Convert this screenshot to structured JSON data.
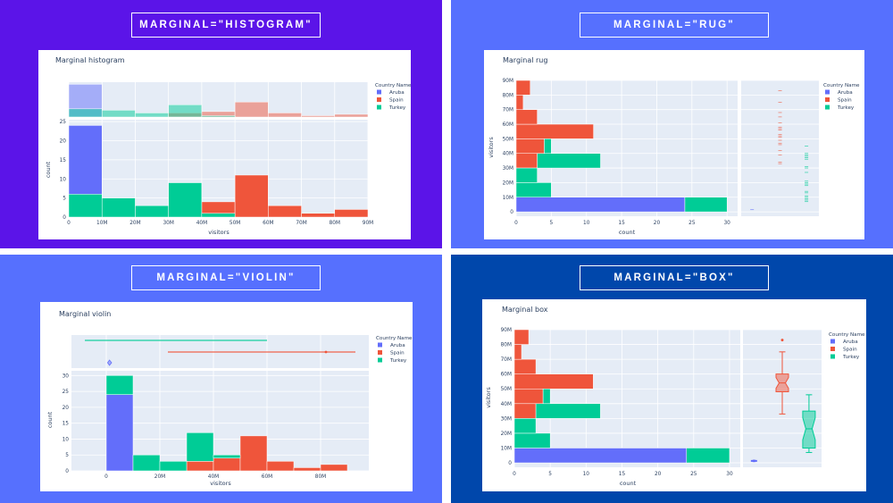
{
  "colors": {
    "Aruba": "#636efa",
    "Spain": "#ef553b",
    "Turkey": "#00cc96",
    "plot_bg": "#e5ecf6",
    "text": "#2a3f5f"
  },
  "quadrants": [
    {
      "banner": "MARGINAL=\"HISTOGRAM\"",
      "bg": "#5b14e8"
    },
    {
      "banner": "MARGINAL=\"RUG\"",
      "bg": "#5670fe"
    },
    {
      "banner": "MARGINAL=\"VIOLIN\"",
      "bg": "#5670fe"
    },
    {
      "banner": "MARGINAL=\"BOX\"",
      "bg": "#0047ab"
    }
  ],
  "chart_data": [
    {
      "type": "bar",
      "orientation": "vertical",
      "title": "Marginal histogram",
      "xlabel": "visitors",
      "ylabel": "count",
      "barmode": "overlay",
      "bins": [
        [
          0,
          10
        ],
        [
          10,
          20
        ],
        [
          20,
          30
        ],
        [
          30,
          40
        ],
        [
          40,
          50
        ],
        [
          50,
          60
        ],
        [
          60,
          70
        ],
        [
          70,
          80
        ],
        [
          80,
          90
        ]
      ],
      "series": [
        {
          "name": "Aruba",
          "values": [
            24,
            0,
            0,
            0,
            0,
            0,
            0,
            0,
            0
          ]
        },
        {
          "name": "Spain",
          "values": [
            0,
            0,
            0,
            3,
            4,
            11,
            3,
            1,
            2
          ]
        },
        {
          "name": "Turkey",
          "values": [
            6,
            5,
            3,
            9,
            1,
            0,
            0,
            0,
            0
          ]
        }
      ],
      "xlim": [
        0,
        90
      ],
      "ylim": [
        0,
        25.5
      ],
      "xticks": [
        {
          "v": 0,
          "l": "0"
        },
        {
          "v": 10,
          "l": "10M"
        },
        {
          "v": 20,
          "l": "20M"
        },
        {
          "v": 30,
          "l": "30M"
        },
        {
          "v": 40,
          "l": "40M"
        },
        {
          "v": 50,
          "l": "50M"
        },
        {
          "v": 60,
          "l": "60M"
        },
        {
          "v": 70,
          "l": "70M"
        },
        {
          "v": 80,
          "l": "80M"
        },
        {
          "v": 90,
          "l": "90M"
        }
      ],
      "yticks": [
        {
          "v": 0,
          "l": "0"
        },
        {
          "v": 5,
          "l": "5"
        },
        {
          "v": 10,
          "l": "10"
        },
        {
          "v": 15,
          "l": "15"
        },
        {
          "v": 20,
          "l": "20"
        },
        {
          "v": 25,
          "l": "25"
        }
      ],
      "marginal": {
        "kind": "histogram",
        "opacity": 0.5
      },
      "legend": {
        "title": "Country Name",
        "items": [
          "Aruba",
          "Spain",
          "Turkey"
        ],
        "position": "right"
      },
      "grid": true
    },
    {
      "type": "bar",
      "orientation": "horizontal",
      "title": "Marginal rug",
      "xlabel": "count",
      "ylabel": "visitors",
      "barmode": "stack",
      "bins": [
        [
          0,
          10
        ],
        [
          10,
          20
        ],
        [
          20,
          30
        ],
        [
          30,
          40
        ],
        [
          40,
          50
        ],
        [
          50,
          60
        ],
        [
          60,
          70
        ],
        [
          70,
          80
        ],
        [
          80,
          90
        ]
      ],
      "series": [
        {
          "name": "Aruba",
          "values": [
            24,
            0,
            0,
            0,
            0,
            0,
            0,
            0,
            0
          ]
        },
        {
          "name": "Spain",
          "values": [
            0,
            0,
            0,
            3,
            4,
            11,
            3,
            1,
            2
          ]
        },
        {
          "name": "Turkey",
          "values": [
            6,
            5,
            3,
            9,
            1,
            0,
            0,
            0,
            0
          ]
        }
      ],
      "xlim": [
        0,
        31.5
      ],
      "ylim": [
        -3,
        90
      ],
      "xticks": [
        {
          "v": 0,
          "l": "0"
        },
        {
          "v": 5,
          "l": "5"
        },
        {
          "v": 10,
          "l": "10"
        },
        {
          "v": 15,
          "l": "15"
        },
        {
          "v": 20,
          "l": "20"
        },
        {
          "v": 25,
          "l": "25"
        },
        {
          "v": 30,
          "l": "30"
        }
      ],
      "yticks": [
        {
          "v": 0,
          "l": "0"
        },
        {
          "v": 10,
          "l": "10M"
        },
        {
          "v": 20,
          "l": "20M"
        },
        {
          "v": 30,
          "l": "30M"
        },
        {
          "v": 40,
          "l": "40M"
        },
        {
          "v": 50,
          "l": "50M"
        },
        {
          "v": 60,
          "l": "60M"
        },
        {
          "v": 70,
          "l": "70M"
        },
        {
          "v": 80,
          "l": "80M"
        },
        {
          "v": 90,
          "l": "90M"
        }
      ],
      "marginal": {
        "kind": "rug",
        "points": {
          "Aruba": [
            1.5
          ],
          "Spain": [
            83,
            75,
            68,
            65,
            61,
            58,
            57,
            56,
            53,
            52,
            51,
            49,
            47,
            46,
            42,
            39,
            34,
            33
          ],
          "Turkey": [
            45,
            40,
            39,
            38,
            37,
            36,
            31,
            30,
            27,
            21,
            20,
            19,
            18,
            14,
            13,
            11,
            10,
            9,
            8,
            7
          ]
        }
      },
      "legend": {
        "title": "Country Name",
        "items": [
          "Aruba",
          "Spain",
          "Turkey"
        ],
        "position": "right"
      },
      "grid": true
    },
    {
      "type": "bar",
      "orientation": "vertical",
      "title": "Marginal violin",
      "xlabel": "visitors",
      "ylabel": "count",
      "barmode": "stack",
      "bins": [
        [
          0,
          10
        ],
        [
          10,
          20
        ],
        [
          20,
          30
        ],
        [
          30,
          40
        ],
        [
          40,
          50
        ],
        [
          50,
          60
        ],
        [
          60,
          70
        ],
        [
          70,
          80
        ],
        [
          80,
          90
        ]
      ],
      "series": [
        {
          "name": "Aruba",
          "values": [
            24,
            0,
            0,
            0,
            0,
            0,
            0,
            0,
            0
          ]
        },
        {
          "name": "Spain",
          "values": [
            0,
            0,
            0,
            3,
            4,
            11,
            3,
            1,
            2
          ]
        },
        {
          "name": "Turkey",
          "values": [
            6,
            5,
            3,
            9,
            1,
            0,
            0,
            0,
            0
          ]
        }
      ],
      "xlim": [
        -13,
        98
      ],
      "ylim": [
        0,
        31.5
      ],
      "xticks": [
        {
          "v": 0,
          "l": "0"
        },
        {
          "v": 20,
          "l": "20M"
        },
        {
          "v": 40,
          "l": "40M"
        },
        {
          "v": 60,
          "l": "60M"
        },
        {
          "v": 80,
          "l": "80M"
        }
      ],
      "yticks": [
        {
          "v": 0,
          "l": "0"
        },
        {
          "v": 5,
          "l": "5"
        },
        {
          "v": 10,
          "l": "10"
        },
        {
          "v": 15,
          "l": "15"
        },
        {
          "v": 20,
          "l": "20"
        },
        {
          "v": 25,
          "l": "25"
        },
        {
          "v": 30,
          "l": "30"
        }
      ],
      "marginal": {
        "kind": "violin",
        "violins": {
          "Turkey": {
            "min": -8,
            "max": 60
          },
          "Spain": {
            "min": 23,
            "max": 93,
            "outlier": 82
          },
          "Aruba": {
            "min": 0.5,
            "max": 2
          }
        }
      },
      "legend": {
        "title": "Country Name",
        "items": [
          "Aruba",
          "Spain",
          "Turkey"
        ],
        "position": "right"
      },
      "grid": true
    },
    {
      "type": "bar",
      "orientation": "horizontal",
      "title": "Marginal box",
      "xlabel": "count",
      "ylabel": "visitors",
      "barmode": "stack",
      "bins": [
        [
          0,
          10
        ],
        [
          10,
          20
        ],
        [
          20,
          30
        ],
        [
          30,
          40
        ],
        [
          40,
          50
        ],
        [
          50,
          60
        ],
        [
          60,
          70
        ],
        [
          70,
          80
        ],
        [
          80,
          90
        ]
      ],
      "series": [
        {
          "name": "Aruba",
          "values": [
            24,
            0,
            0,
            0,
            0,
            0,
            0,
            0,
            0
          ]
        },
        {
          "name": "Spain",
          "values": [
            0,
            0,
            0,
            3,
            4,
            11,
            3,
            1,
            2
          ]
        },
        {
          "name": "Turkey",
          "values": [
            6,
            5,
            3,
            9,
            1,
            0,
            0,
            0,
            0
          ]
        }
      ],
      "xlim": [
        0,
        31.5
      ],
      "ylim": [
        -3,
        90
      ],
      "xticks": [
        {
          "v": 0,
          "l": "0"
        },
        {
          "v": 5,
          "l": "5"
        },
        {
          "v": 10,
          "l": "10"
        },
        {
          "v": 15,
          "l": "15"
        },
        {
          "v": 20,
          "l": "20"
        },
        {
          "v": 25,
          "l": "25"
        },
        {
          "v": 30,
          "l": "30"
        }
      ],
      "yticks": [
        {
          "v": 0,
          "l": "0"
        },
        {
          "v": 10,
          "l": "10M"
        },
        {
          "v": 20,
          "l": "20M"
        },
        {
          "v": 30,
          "l": "30M"
        },
        {
          "v": 40,
          "l": "40M"
        },
        {
          "v": 50,
          "l": "50M"
        },
        {
          "v": 60,
          "l": "60M"
        },
        {
          "v": 70,
          "l": "70M"
        },
        {
          "v": 80,
          "l": "80M"
        },
        {
          "v": 90,
          "l": "90M"
        }
      ],
      "marginal": {
        "kind": "box",
        "notched": true,
        "boxes": {
          "Aruba": {
            "min": 0.8,
            "q1": 1,
            "median": 1.3,
            "q3": 1.6,
            "max": 1.8
          },
          "Spain": {
            "min": 33,
            "q1": 48,
            "median": 54,
            "q3": 60,
            "max": 75,
            "outliers": [
              83
            ]
          },
          "Turkey": {
            "min": 7,
            "q1": 10,
            "median": 23,
            "q3": 35,
            "max": 46
          }
        }
      },
      "legend": {
        "title": "Country Name",
        "items": [
          "Aruba",
          "Spain",
          "Turkey"
        ],
        "position": "right"
      },
      "grid": true
    }
  ]
}
